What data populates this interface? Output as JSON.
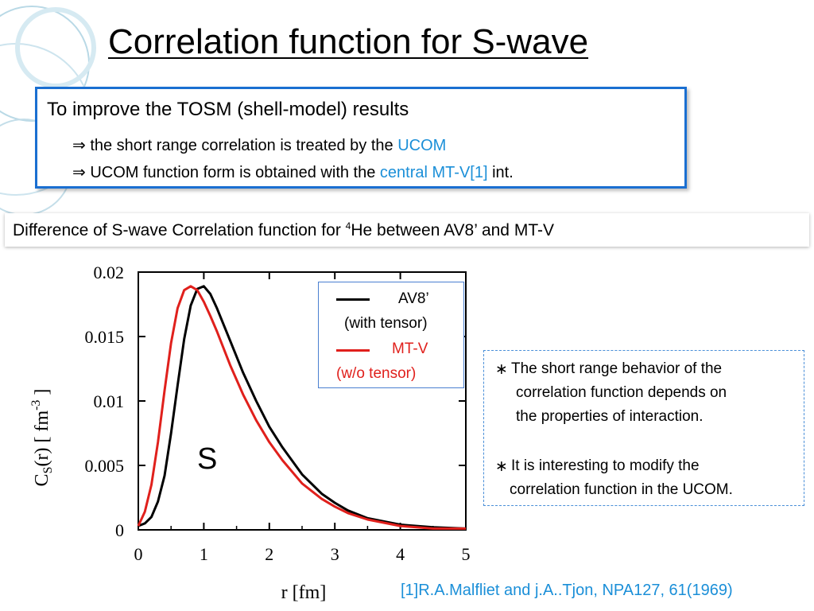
{
  "slide": {
    "title": "Correlation function for S-wave",
    "box": {
      "line1": "To improve  the TOSM (shell-model) results",
      "line2_prefix": "⇒ the short range correlation is treated by the ",
      "line2_highlight": "UCOM",
      "line3_prefix": "⇒ UCOM function form is obtained with the ",
      "line3_highlight": "central MT-V[1]",
      "line3_suffix": " int."
    },
    "subtitle": {
      "prefix": "Difference of S-wave Correlation function for ",
      "sup": "4",
      "suffix": "He between AV8’ and MT-V"
    },
    "notes": {
      "bullet": "∗",
      "n1a": "The short range behavior of the",
      "n1b": "correlation function depends on",
      "n1c": "the properties of interaction.",
      "n2a": "It is interesting to modify the",
      "n2b": "correlation function in the UCOM."
    },
    "reference": "[1]R.A.Malfliet and  j.A..Tjon, NPA127, 61(1969)",
    "accent_color": "#1b8fd8",
    "box_border_color": "#1a6fd1"
  },
  "chart_data": {
    "type": "line",
    "xlabel": "r [fm]",
    "ylabel_main": "C",
    "ylabel_sub": "S",
    "ylabel_rest": "(r) [ fm",
    "ylabel_sup": "-3",
    "ylabel_end": " ]",
    "xlim": [
      0,
      5
    ],
    "ylim": [
      0,
      0.02
    ],
    "xticks": [
      "0",
      "1",
      "2",
      "3",
      "4",
      "5"
    ],
    "yticks": [
      "0",
      "0.005",
      "0.01",
      "0.015",
      "0.02"
    ],
    "annotation": "S",
    "legend_placement": "top-right",
    "legend": [
      {
        "label": "AV8’",
        "sublabel": "(with tensor)",
        "color": "#000000"
      },
      {
        "label": "MT-V",
        "sublabel": "(w/o tensor)",
        "color": "#e0201c"
      }
    ],
    "series": [
      {
        "name": "AV8’",
        "color": "#000000",
        "x": [
          0,
          0.1,
          0.2,
          0.3,
          0.4,
          0.5,
          0.6,
          0.7,
          0.8,
          0.9,
          1.0,
          1.1,
          1.2,
          1.4,
          1.6,
          1.8,
          2.0,
          2.2,
          2.5,
          2.8,
          3.0,
          3.2,
          3.5,
          4.0,
          4.5,
          5.0
        ],
        "y": [
          0.0003,
          0.0005,
          0.001,
          0.0022,
          0.0042,
          0.0075,
          0.0112,
          0.0148,
          0.0174,
          0.0187,
          0.0189,
          0.0183,
          0.0172,
          0.0147,
          0.0122,
          0.01,
          0.008,
          0.0064,
          0.0043,
          0.0028,
          0.0021,
          0.0015,
          0.0009,
          0.0004,
          0.0002,
          0.0001
        ]
      },
      {
        "name": "MT-V",
        "color": "#e0201c",
        "x": [
          0,
          0.1,
          0.2,
          0.3,
          0.4,
          0.5,
          0.6,
          0.7,
          0.8,
          0.9,
          1.0,
          1.1,
          1.2,
          1.4,
          1.6,
          1.8,
          2.0,
          2.2,
          2.5,
          2.8,
          3.0,
          3.2,
          3.5,
          4.0,
          4.5,
          5.0
        ],
        "y": [
          0.0003,
          0.0014,
          0.0035,
          0.0068,
          0.0108,
          0.0145,
          0.0172,
          0.0186,
          0.0189,
          0.0186,
          0.0177,
          0.0166,
          0.0154,
          0.0128,
          0.0105,
          0.0085,
          0.0068,
          0.0054,
          0.0036,
          0.0024,
          0.0018,
          0.0013,
          0.0008,
          0.0003,
          0.0001,
          0.0001
        ]
      }
    ]
  }
}
